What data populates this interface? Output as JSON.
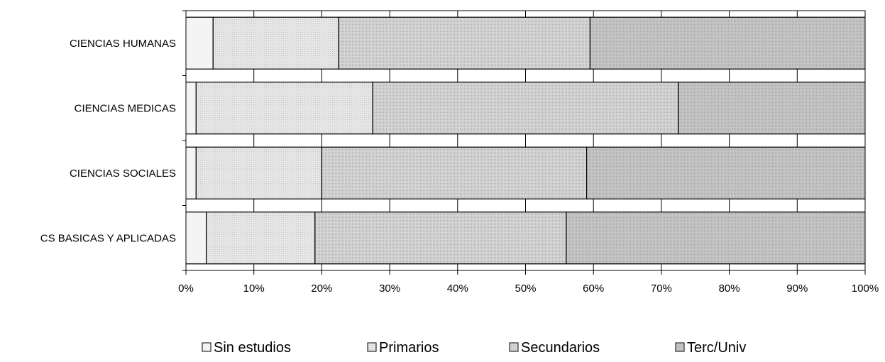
{
  "chart_data": {
    "type": "bar",
    "orientation": "horizontal",
    "stacked": "percent",
    "categories": [
      "CIENCIAS HUMANAS",
      "CIENCIAS MEDICAS",
      "CIENCIAS SOCIALES",
      "CS BASICAS Y APLICADAS"
    ],
    "series": [
      {
        "name": "Sin estudios",
        "values": [
          4,
          1.5,
          1.5,
          3
        ],
        "color": "#f4f4f4"
      },
      {
        "name": "Primarios",
        "values": [
          18.5,
          26,
          18.5,
          16
        ],
        "color": "#e6e6e6"
      },
      {
        "name": "Secundarios",
        "values": [
          37,
          45,
          39,
          37
        ],
        "color": "#d6d6d6"
      },
      {
        "name": "Terc/Univ",
        "values": [
          40.5,
          27.5,
          41,
          44
        ],
        "color": "#c6c6c6"
      }
    ],
    "xlim": [
      0,
      100
    ],
    "xticks": [
      "0%",
      "10%",
      "20%",
      "30%",
      "40%",
      "50%",
      "60%",
      "70%",
      "80%",
      "90%",
      "100%"
    ],
    "legend_position": "bottom",
    "grid": "vertical"
  }
}
